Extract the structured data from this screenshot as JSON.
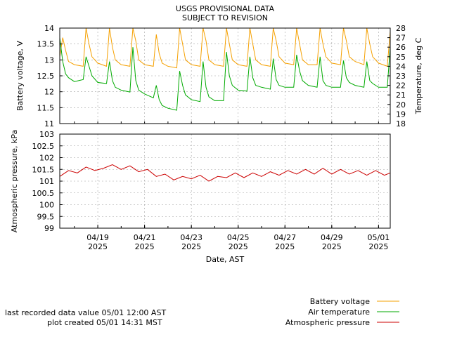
{
  "title": "USGS PROVISIONAL DATA",
  "subtitle": "SUBJECT TO REVISION",
  "footer": {
    "last_value": "last recorded data value 05/01 12:00 AST",
    "plot_created": "plot created 05/01 14:31 MST"
  },
  "colors": {
    "battery": "#f5a000",
    "air_temperature": "#00aa00",
    "pressure": "#cc0000"
  },
  "chart_data": [
    {
      "type": "line",
      "panel": "top",
      "xlabel": "",
      "ylabel": "Battery voltage, V",
      "y2label": "Temperature, deg C",
      "ylim": [
        11,
        14
      ],
      "yticks": [
        "11",
        "11.5",
        "12",
        "12.5",
        "13",
        "13.5",
        "14"
      ],
      "y2lim": [
        18,
        28
      ],
      "y2ticks": [
        "18",
        "19",
        "20",
        "21",
        "22",
        "23",
        "24",
        "25",
        "26",
        "27",
        "28"
      ],
      "xlim_days": [
        "04/17 09:00",
        "05/01 12:00"
      ],
      "grid": true,
      "series": [
        {
          "name": "Battery voltage",
          "axis": "left",
          "x": [
            "04/17 09:00",
            "04/17 12:00",
            "04/17 15:00",
            "04/17 18:00",
            "04/18 00:00",
            "04/18 09:00",
            "04/18 12:00",
            "04/18 15:00",
            "04/18 18:00",
            "04/19 00:00",
            "04/19 09:00",
            "04/19 12:00",
            "04/19 15:00",
            "04/19 18:00",
            "04/20 00:00",
            "04/20 09:00",
            "04/20 12:00",
            "04/20 15:00",
            "04/20 18:00",
            "04/21 00:00",
            "04/21 09:00",
            "04/21 12:00",
            "04/21 15:00",
            "04/21 18:00",
            "04/22 00:00",
            "04/22 09:00",
            "04/22 12:00",
            "04/22 15:00",
            "04/22 18:00",
            "04/23 00:00",
            "04/23 09:00",
            "04/23 12:00",
            "04/23 15:00",
            "04/23 18:00",
            "04/24 00:00",
            "04/24 09:00",
            "04/24 12:00",
            "04/24 15:00",
            "04/24 18:00",
            "04/25 00:00",
            "04/25 09:00",
            "04/25 12:00",
            "04/25 15:00",
            "04/25 18:00",
            "04/26 00:00",
            "04/26 09:00",
            "04/26 12:00",
            "04/26 15:00",
            "04/26 18:00",
            "04/27 00:00",
            "04/27 09:00",
            "04/27 12:00",
            "04/27 15:00",
            "04/27 18:00",
            "04/28 00:00",
            "04/28 09:00",
            "04/28 12:00",
            "04/28 15:00",
            "04/28 18:00",
            "04/29 00:00",
            "04/29 09:00",
            "04/29 12:00",
            "04/29 15:00",
            "04/29 18:00",
            "04/30 00:00",
            "04/30 09:00",
            "04/30 12:00",
            "04/30 15:00",
            "04/30 18:00",
            "05/01 00:00",
            "05/01 09:00",
            "05/01 12:00"
          ],
          "y": [
            13.1,
            13.7,
            13.3,
            12.95,
            12.85,
            12.8,
            14.0,
            13.5,
            13.1,
            12.9,
            12.8,
            14.0,
            13.4,
            13.0,
            12.85,
            12.8,
            14.0,
            13.6,
            13.0,
            12.85,
            12.8,
            13.8,
            13.2,
            12.9,
            12.8,
            12.75,
            14.0,
            13.5,
            13.0,
            12.85,
            12.8,
            14.0,
            13.6,
            13.0,
            12.85,
            12.8,
            14.0,
            13.5,
            13.0,
            12.85,
            12.8,
            14.0,
            13.5,
            13.0,
            12.85,
            12.8,
            14.0,
            13.6,
            13.1,
            12.9,
            12.85,
            14.0,
            13.5,
            13.0,
            12.85,
            12.85,
            14.0,
            13.5,
            13.1,
            12.9,
            12.85,
            14.0,
            13.6,
            13.1,
            12.95,
            12.85,
            14.0,
            13.5,
            13.1,
            12.9,
            12.8,
            13.9
          ]
        },
        {
          "name": "Air temperature",
          "axis": "right",
          "x": [
            "04/17 09:00",
            "04/17 12:00",
            "04/17 15:00",
            "04/17 18:00",
            "04/18 00:00",
            "04/18 09:00",
            "04/18 12:00",
            "04/18 15:00",
            "04/18 18:00",
            "04/19 00:00",
            "04/19 09:00",
            "04/19 12:00",
            "04/19 15:00",
            "04/19 18:00",
            "04/20 00:00",
            "04/20 09:00",
            "04/20 12:00",
            "04/20 15:00",
            "04/20 18:00",
            "04/21 00:00",
            "04/21 09:00",
            "04/21 12:00",
            "04/21 15:00",
            "04/21 18:00",
            "04/22 00:00",
            "04/22 09:00",
            "04/22 12:00",
            "04/22 15:00",
            "04/22 18:00",
            "04/23 00:00",
            "04/23 09:00",
            "04/23 12:00",
            "04/23 15:00",
            "04/23 18:00",
            "04/24 00:00",
            "04/24 09:00",
            "04/24 12:00",
            "04/24 15:00",
            "04/24 18:00",
            "04/25 00:00",
            "04/25 09:00",
            "04/25 12:00",
            "04/25 15:00",
            "04/25 18:00",
            "04/26 00:00",
            "04/26 09:00",
            "04/26 12:00",
            "04/26 15:00",
            "04/26 18:00",
            "04/27 00:00",
            "04/27 09:00",
            "04/27 12:00",
            "04/27 15:00",
            "04/27 18:00",
            "04/28 00:00",
            "04/28 09:00",
            "04/28 12:00",
            "04/28 15:00",
            "04/28 18:00",
            "04/29 00:00",
            "04/29 09:00",
            "04/29 12:00",
            "04/29 15:00",
            "04/29 18:00",
            "04/30 00:00",
            "04/30 09:00",
            "04/30 12:00",
            "04/30 15:00",
            "04/30 18:00",
            "05/01 00:00",
            "05/01 09:00",
            "05/01 12:00"
          ],
          "y": [
            27.0,
            24.5,
            23.2,
            22.8,
            22.4,
            22.6,
            25.0,
            24.0,
            23.0,
            22.3,
            22.2,
            24.5,
            22.5,
            21.8,
            21.5,
            21.3,
            26.0,
            22.5,
            21.5,
            21.1,
            20.7,
            22.0,
            20.5,
            19.9,
            19.6,
            19.4,
            23.5,
            22.0,
            21.0,
            20.5,
            20.3,
            24.5,
            21.8,
            20.8,
            20.4,
            20.4,
            25.5,
            23.0,
            22.0,
            21.5,
            21.4,
            25.0,
            22.8,
            22.0,
            21.8,
            21.6,
            24.8,
            22.6,
            22.0,
            21.8,
            21.8,
            25.2,
            23.5,
            22.5,
            22.0,
            21.8,
            25.0,
            22.5,
            22.0,
            21.8,
            21.8,
            24.6,
            22.8,
            22.3,
            22.0,
            21.8,
            24.5,
            22.5,
            22.2,
            21.8,
            21.8,
            26.0
          ]
        }
      ]
    },
    {
      "type": "line",
      "panel": "bottom",
      "xlabel": "Date, AST",
      "ylabel": "Atmospheric pressure, kPa",
      "ylim": [
        99,
        103
      ],
      "yticks": [
        "99",
        "99.5",
        "100",
        "100.5",
        "101",
        "101.5",
        "102",
        "102.5",
        "103"
      ],
      "xlim_days": [
        "04/17 09:00",
        "05/01 12:00"
      ],
      "xticks": [
        {
          "date": "04/19",
          "year": "2025"
        },
        {
          "date": "04/21",
          "year": "2025"
        },
        {
          "date": "04/23",
          "year": "2025"
        },
        {
          "date": "04/25",
          "year": "2025"
        },
        {
          "date": "04/27",
          "year": "2025"
        },
        {
          "date": "04/29",
          "year": "2025"
        },
        {
          "date": "05/01",
          "year": "2025"
        }
      ],
      "grid": true,
      "series": [
        {
          "name": "Atmospheric pressure",
          "x": [
            "04/17 09:00",
            "04/17 18:00",
            "04/18 03:00",
            "04/18 12:00",
            "04/18 21:00",
            "04/19 06:00",
            "04/19 15:00",
            "04/20 00:00",
            "04/20 09:00",
            "04/20 18:00",
            "04/21 03:00",
            "04/21 12:00",
            "04/21 21:00",
            "04/22 06:00",
            "04/22 15:00",
            "04/23 00:00",
            "04/23 09:00",
            "04/23 18:00",
            "04/24 03:00",
            "04/24 12:00",
            "04/24 21:00",
            "04/25 06:00",
            "04/25 15:00",
            "04/26 00:00",
            "04/26 09:00",
            "04/26 18:00",
            "04/27 03:00",
            "04/27 12:00",
            "04/27 21:00",
            "04/28 06:00",
            "04/28 15:00",
            "04/29 00:00",
            "04/29 09:00",
            "04/29 18:00",
            "04/30 03:00",
            "04/30 12:00",
            "04/30 21:00",
            "05/01 06:00",
            "05/01 12:00"
          ],
          "y": [
            101.2,
            101.45,
            101.35,
            101.6,
            101.45,
            101.55,
            101.7,
            101.5,
            101.65,
            101.4,
            101.5,
            101.2,
            101.3,
            101.05,
            101.2,
            101.1,
            101.25,
            101.0,
            101.2,
            101.15,
            101.35,
            101.15,
            101.35,
            101.2,
            101.4,
            101.25,
            101.45,
            101.3,
            101.5,
            101.3,
            101.55,
            101.3,
            101.5,
            101.3,
            101.45,
            101.25,
            101.45,
            101.25,
            101.35
          ]
        }
      ]
    }
  ],
  "legend": {
    "placement": "bottom-right",
    "items": [
      {
        "label": "Battery voltage",
        "color": "#f5a000"
      },
      {
        "label": "Air temperature",
        "color": "#00aa00"
      },
      {
        "label": "Atmospheric pressure",
        "color": "#cc0000"
      }
    ]
  }
}
